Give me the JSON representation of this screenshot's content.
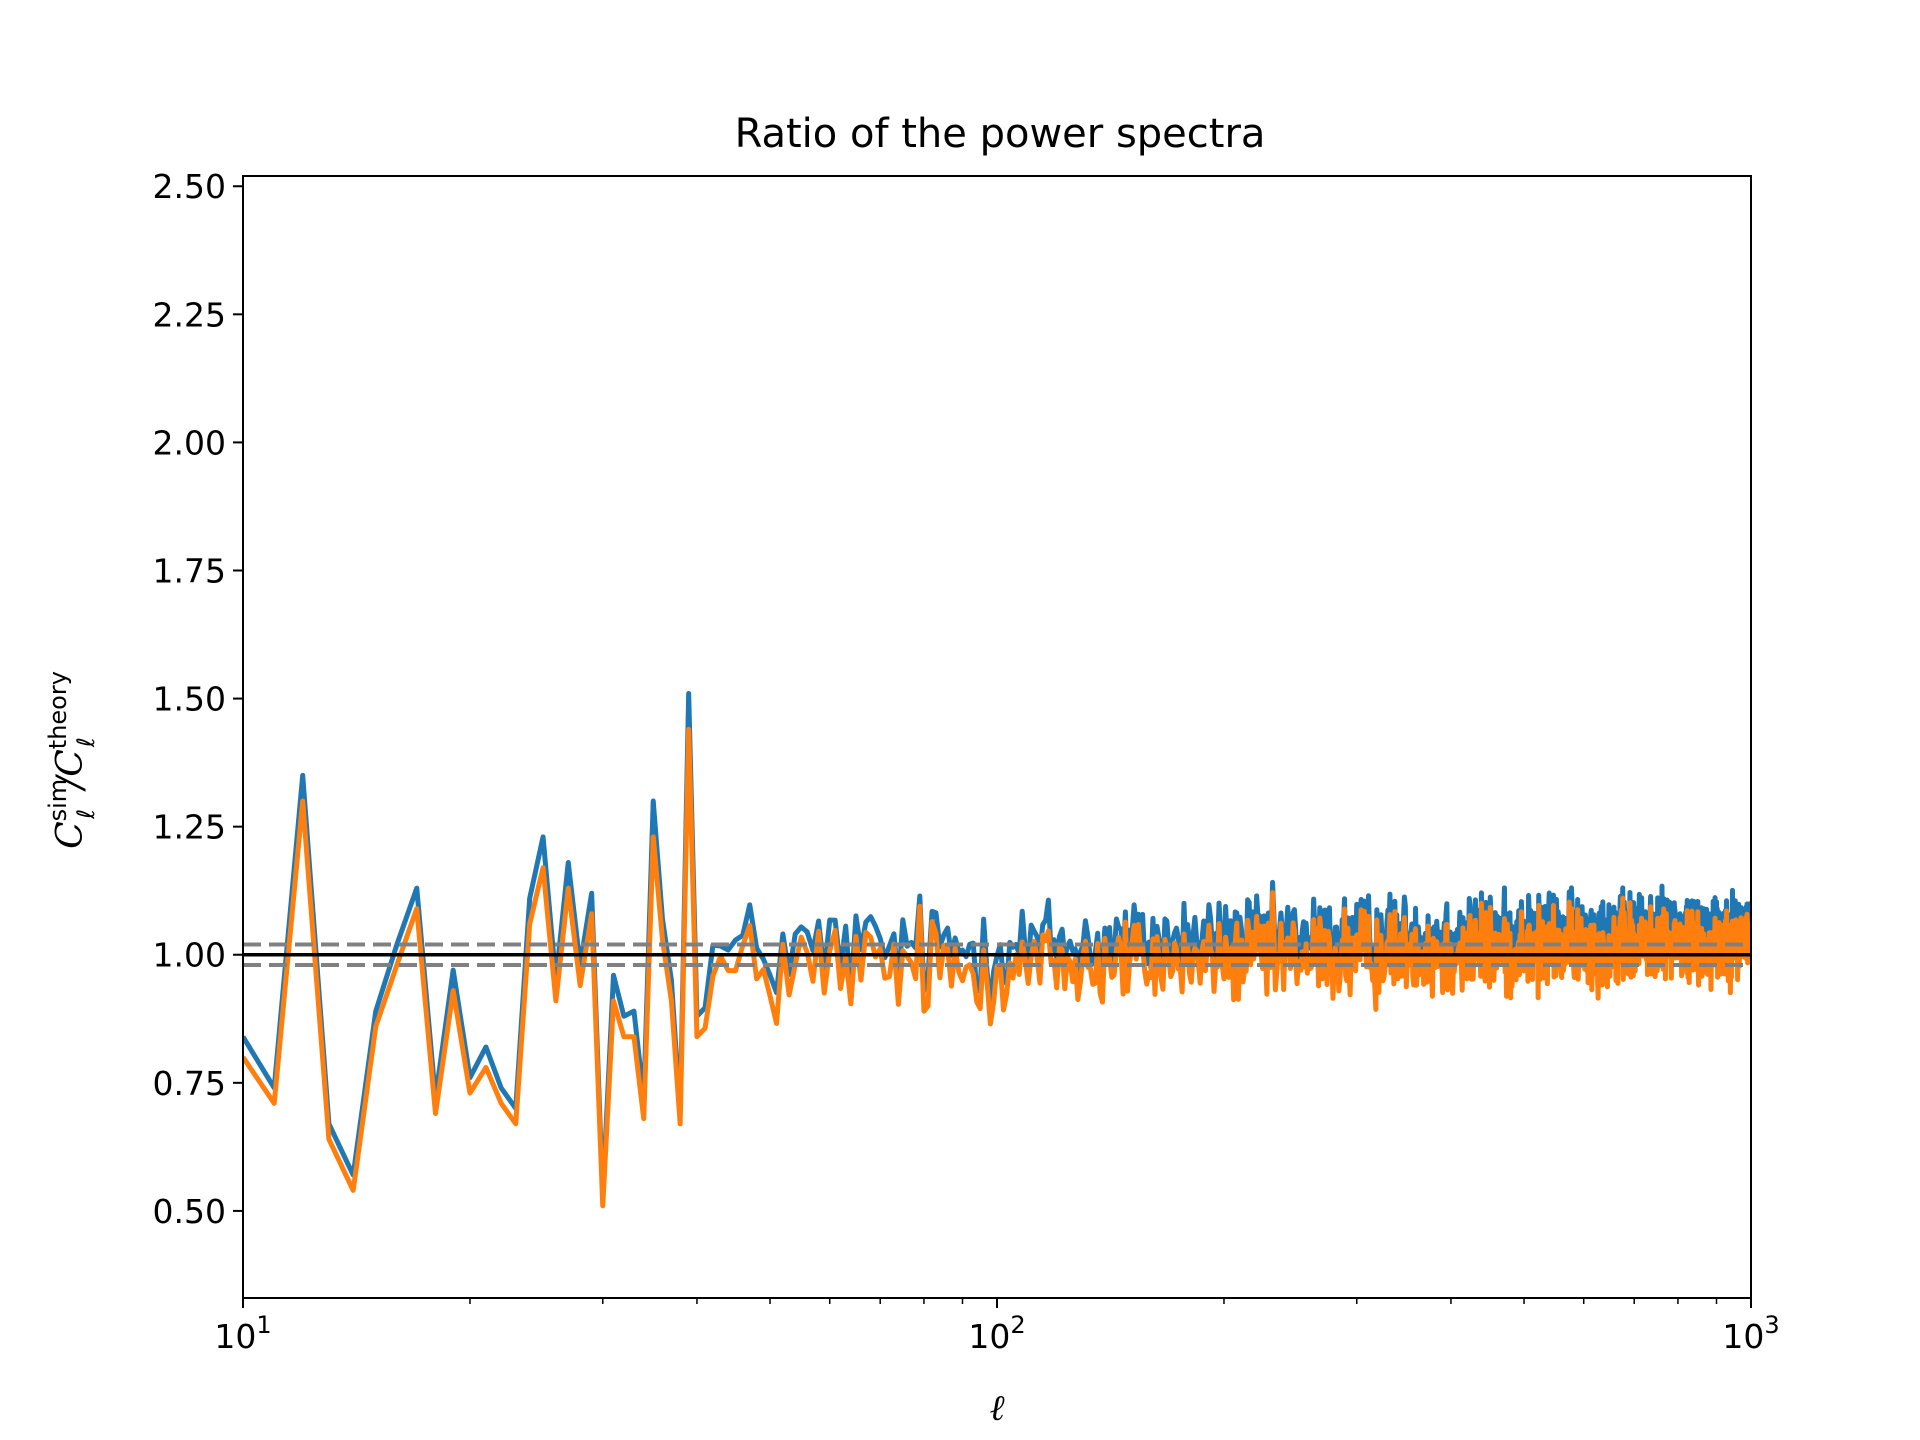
{
  "chart_data": {
    "type": "line",
    "title": "Ratio of the power spectra",
    "xlabel": "ℓ",
    "ylabel": {
      "base": "C",
      "sub": "ℓ",
      "sup_num": "sim",
      "sep": "/",
      "sup_den": "theory"
    },
    "xscale": "log",
    "xlim": [
      10,
      1000
    ],
    "ylim": [
      0.33,
      2.52
    ],
    "x_ticks": [
      {
        "value": 10,
        "base": "10",
        "exp": "1"
      },
      {
        "value": 100,
        "base": "10",
        "exp": "2"
      },
      {
        "value": 1000,
        "base": "10",
        "exp": "3"
      }
    ],
    "y_ticks": [
      "0.50",
      "0.75",
      "1.00",
      "1.25",
      "1.50",
      "1.75",
      "2.00",
      "2.25",
      "2.50"
    ],
    "grid": false,
    "legend": "none",
    "colors": {
      "series1": "#1f77b4",
      "series2": "#ff7f0e",
      "reference": "#000000",
      "band": "#808080"
    },
    "reference_lines": [
      {
        "y": 1.0,
        "style": "solid",
        "color": "#000000"
      },
      {
        "y": 1.02,
        "style": "dashed",
        "color": "#808080"
      },
      {
        "y": 0.98,
        "style": "dashed",
        "color": "#808080"
      }
    ],
    "series": [
      {
        "x": [
          10,
          11,
          12,
          13,
          14,
          15,
          16,
          17,
          18,
          19,
          20,
          21,
          22,
          23,
          24,
          25,
          26,
          27,
          28,
          29,
          30,
          31,
          32,
          33,
          34,
          35,
          36,
          37,
          38,
          39,
          40
        ],
        "values": [
          0.84,
          0.74,
          1.35,
          0.67,
          0.57,
          0.89,
          1.02,
          1.13,
          0.72,
          0.97,
          0.76,
          0.82,
          0.74,
          0.7,
          1.11,
          1.23,
          0.95,
          1.18,
          0.98,
          1.12,
          0.53,
          0.96,
          0.88,
          0.89,
          0.72,
          1.3,
          1.07,
          0.95,
          0.69,
          1.51,
          0.88
        ],
        "dense_band": {
          "from": 40,
          "to": 1000,
          "mean_start": 1.0,
          "mean_end": 1.06,
          "amp_start": 0.17,
          "amp_end": 0.09
        }
      },
      {
        "x": [
          10,
          11,
          12,
          13,
          14,
          15,
          16,
          17,
          18,
          19,
          20,
          21,
          22,
          23,
          24,
          25,
          26,
          27,
          28,
          29,
          30,
          31,
          32,
          33,
          34,
          35,
          36,
          37,
          38,
          39,
          40
        ],
        "values": [
          0.8,
          0.71,
          1.3,
          0.64,
          0.54,
          0.86,
          0.98,
          1.09,
          0.69,
          0.93,
          0.73,
          0.78,
          0.71,
          0.67,
          1.06,
          1.17,
          0.91,
          1.13,
          0.94,
          1.08,
          0.51,
          0.91,
          0.84,
          0.84,
          0.68,
          1.23,
          1.03,
          0.91,
          0.67,
          1.44,
          0.84
        ],
        "dense_band": {
          "from": 40,
          "to": 1000,
          "mean_start": 0.96,
          "mean_end": 1.0,
          "amp_start": 0.16,
          "amp_end": 0.08
        }
      }
    ]
  }
}
